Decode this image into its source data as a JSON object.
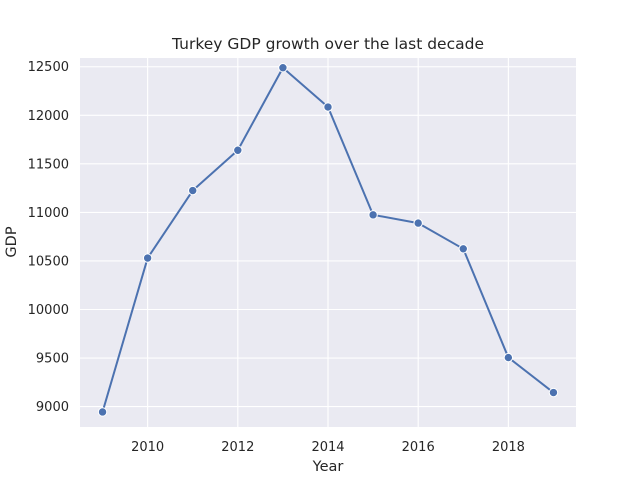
{
  "chart_data": {
    "type": "line",
    "title": "Turkey GDP growth over the last decade",
    "xlabel": "Year",
    "ylabel": "GDP",
    "x": [
      2009,
      2010,
      2011,
      2012,
      2013,
      2014,
      2015,
      2016,
      2017,
      2018,
      2019
    ],
    "series": [
      {
        "values": [
          8945,
          10530,
          11225,
          11640,
          12490,
          12085,
          10975,
          10890,
          10625,
          9505,
          9145
        ]
      }
    ],
    "xticks": [
      2010,
      2012,
      2014,
      2016,
      2018
    ],
    "yticks": [
      9000,
      9500,
      10000,
      10500,
      11000,
      11500,
      12000,
      12500
    ],
    "xlim": [
      2008.5,
      2019.5
    ],
    "ylim": [
      8790,
      12590
    ],
    "grid": true,
    "style": {
      "line_color": "#4c72b0",
      "background": "#eaeaf2",
      "grid_color": "#ffffff"
    }
  }
}
